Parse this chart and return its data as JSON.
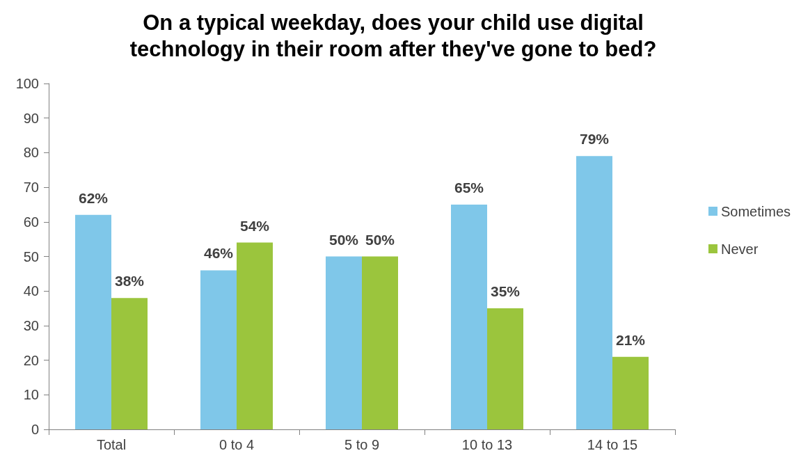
{
  "chart_data": {
    "type": "bar",
    "title": "On a typical weekday, does your child use digital\ntechnology in their room after they've gone to bed?",
    "categories": [
      "Total",
      "0 to 4",
      "5 to 9",
      "10 to 13",
      "14 to 15"
    ],
    "series": [
      {
        "name": "Sometimes",
        "color": "#7fc7e9",
        "values": [
          62,
          46,
          50,
          65,
          79
        ],
        "value_labels": [
          "62%",
          "46%",
          "50%",
          "65%",
          "79%"
        ]
      },
      {
        "name": "Never",
        "color": "#9bc53d",
        "values": [
          38,
          54,
          50,
          35,
          21
        ],
        "value_labels": [
          "38%",
          "54%",
          "50%",
          "35%",
          "21%"
        ]
      }
    ],
    "ylim": [
      0,
      100
    ],
    "yticks": [
      0,
      10,
      20,
      30,
      40,
      50,
      60,
      70,
      80,
      90,
      100
    ],
    "grid": false,
    "legend": "right"
  }
}
